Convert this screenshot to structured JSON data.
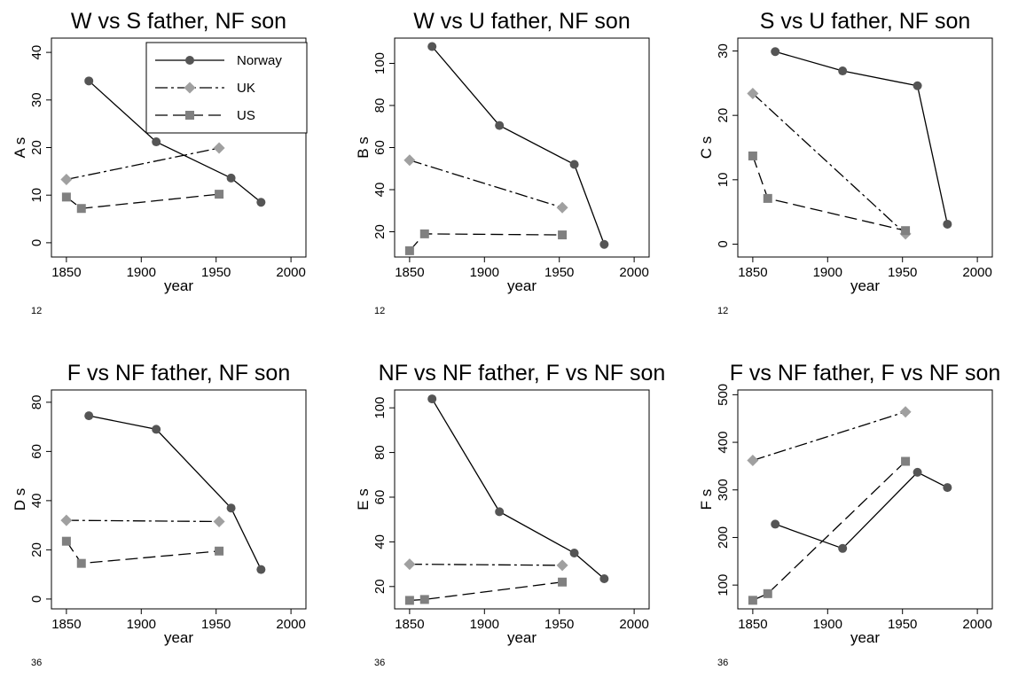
{
  "chart_data": [
    {
      "type": "line",
      "title": "W vs S father, NF son",
      "xlabel": "year",
      "ylabel": "A s",
      "note": "12",
      "xlim": [
        1840,
        2010
      ],
      "xticks": [
        1850,
        1900,
        1950,
        2000
      ],
      "ylim": [
        -3,
        43
      ],
      "yticks": [
        0,
        10,
        20,
        30,
        40
      ],
      "legend": {
        "placement": "top-right"
      },
      "series": [
        {
          "name": "Norway",
          "x": [
            1865,
            1910,
            1960,
            1980
          ],
          "y": [
            34,
            21.2,
            13.6,
            8.5
          ]
        },
        {
          "name": "UK",
          "x": [
            1850,
            1952
          ],
          "y": [
            13.3,
            19.9
          ]
        },
        {
          "name": "US",
          "x": [
            1850,
            1860,
            1952
          ],
          "y": [
            9.6,
            7.2,
            10.2
          ]
        }
      ]
    },
    {
      "type": "line",
      "title": "W vs U father, NF son",
      "xlabel": "year",
      "ylabel": "B s",
      "note": "12",
      "xlim": [
        1840,
        2010
      ],
      "xticks": [
        1850,
        1900,
        1950,
        2000
      ],
      "ylim": [
        8,
        112
      ],
      "yticks": [
        20,
        40,
        60,
        80,
        100
      ],
      "series": [
        {
          "name": "Norway",
          "x": [
            1865,
            1910,
            1960,
            1980
          ],
          "y": [
            108,
            70.5,
            52,
            14
          ]
        },
        {
          "name": "UK",
          "x": [
            1850,
            1952
          ],
          "y": [
            54,
            31.5
          ]
        },
        {
          "name": "US",
          "x": [
            1850,
            1860,
            1952
          ],
          "y": [
            11,
            19,
            18.5
          ]
        }
      ]
    },
    {
      "type": "line",
      "title": "S vs U father, NF son",
      "xlabel": "year",
      "ylabel": "C s",
      "note": "12",
      "xlim": [
        1840,
        2010
      ],
      "xticks": [
        1850,
        1900,
        1950,
        2000
      ],
      "ylim": [
        -2,
        32
      ],
      "yticks": [
        0,
        10,
        20,
        30
      ],
      "series": [
        {
          "name": "Norway",
          "x": [
            1865,
            1910,
            1960,
            1980
          ],
          "y": [
            29.9,
            26.9,
            24.6,
            3.1
          ]
        },
        {
          "name": "UK",
          "x": [
            1850,
            1952
          ],
          "y": [
            23.4,
            1.6
          ]
        },
        {
          "name": "US",
          "x": [
            1850,
            1860,
            1952
          ],
          "y": [
            13.7,
            7.1,
            2.1
          ]
        }
      ]
    },
    {
      "type": "line",
      "title": "F vs NF father, NF son",
      "xlabel": "year",
      "ylabel": "D s",
      "note": "36",
      "xlim": [
        1840,
        2010
      ],
      "xticks": [
        1850,
        1900,
        1950,
        2000
      ],
      "ylim": [
        -4,
        85
      ],
      "yticks": [
        0,
        20,
        40,
        60,
        80
      ],
      "series": [
        {
          "name": "Norway",
          "x": [
            1865,
            1910,
            1960,
            1980
          ],
          "y": [
            74.5,
            69,
            37,
            12
          ]
        },
        {
          "name": "UK",
          "x": [
            1850,
            1952
          ],
          "y": [
            32,
            31.5
          ]
        },
        {
          "name": "US",
          "x": [
            1850,
            1860,
            1952
          ],
          "y": [
            23.5,
            14.5,
            19.5
          ]
        }
      ]
    },
    {
      "type": "line",
      "title": "NF vs NF father, F vs NF son",
      "xlabel": "year",
      "ylabel": "E s",
      "note": "36",
      "xlim": [
        1840,
        2010
      ],
      "xticks": [
        1850,
        1900,
        1950,
        2000
      ],
      "ylim": [
        10,
        108
      ],
      "yticks": [
        20,
        40,
        60,
        80,
        100
      ],
      "series": [
        {
          "name": "Norway",
          "x": [
            1865,
            1910,
            1960,
            1980
          ],
          "y": [
            104,
            53.5,
            35,
            23.5
          ]
        },
        {
          "name": "UK",
          "x": [
            1850,
            1952
          ],
          "y": [
            30,
            29.5
          ]
        },
        {
          "name": "US",
          "x": [
            1850,
            1860,
            1952
          ],
          "y": [
            13.8,
            14.2,
            22
          ]
        }
      ]
    },
    {
      "type": "line",
      "title": "F vs NF father, F vs NF son",
      "xlabel": "year",
      "ylabel": "F s",
      "note": "36",
      "xlim": [
        1840,
        2010
      ],
      "xticks": [
        1850,
        1900,
        1950,
        2000
      ],
      "ylim": [
        50,
        510
      ],
      "yticks": [
        100,
        200,
        300,
        400,
        500
      ],
      "series": [
        {
          "name": "Norway",
          "x": [
            1865,
            1910,
            1960,
            1980
          ],
          "y": [
            228,
            177,
            337,
            305
          ]
        },
        {
          "name": "UK",
          "x": [
            1850,
            1952
          ],
          "y": [
            362,
            464
          ]
        },
        {
          "name": "US",
          "x": [
            1850,
            1860,
            1952
          ],
          "y": [
            68,
            82,
            360
          ]
        }
      ]
    }
  ],
  "style": {
    "Norway": {
      "color": "#555555",
      "marker": "circle",
      "dash": "solid"
    },
    "UK": {
      "color": "#a0a0a0",
      "marker": "diamond",
      "dash": "dash-dot"
    },
    "US": {
      "color": "#808080",
      "marker": "square",
      "dash": "long-dash"
    }
  }
}
